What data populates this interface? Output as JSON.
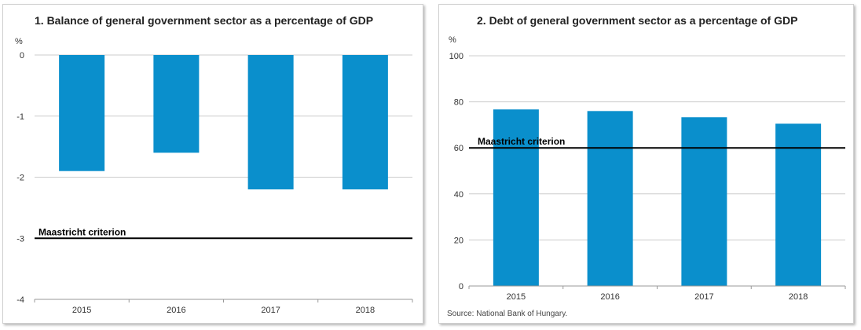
{
  "chart_data": [
    {
      "id": "chart1",
      "type": "bar",
      "title": "1. Balance of general government sector as a percentage of GDP",
      "unit": "%",
      "categories": [
        "2015",
        "2016",
        "2017",
        "2018"
      ],
      "values": [
        -1.9,
        -1.6,
        -2.2,
        -2.2
      ],
      "ylim": [
        -4,
        0
      ],
      "yticks": [
        0,
        -1,
        -2,
        -3,
        -4
      ],
      "ytick_labels": [
        "0",
        "-1",
        "-2",
        "-3",
        "-4"
      ],
      "grid": true,
      "reference_line": {
        "value": -3,
        "label": "Maastricht criterion"
      },
      "bar_color": "#0a8fcc"
    },
    {
      "id": "chart2",
      "type": "bar",
      "title": "2. Debt of general government sector as a percentage of GDP",
      "unit": "%",
      "categories": [
        "2015",
        "2016",
        "2017",
        "2018"
      ],
      "values": [
        76.7,
        76.0,
        73.3,
        70.5
      ],
      "ylim": [
        0,
        100
      ],
      "yticks": [
        0,
        20,
        40,
        60,
        80,
        100
      ],
      "ytick_labels": [
        "0",
        "20",
        "40",
        "60",
        "80",
        "100"
      ],
      "grid": true,
      "reference_line": {
        "value": 60,
        "label": "Maastricht criterion"
      },
      "bar_color": "#0a8fcc",
      "source": "Source: National Bank of Hungary."
    }
  ]
}
